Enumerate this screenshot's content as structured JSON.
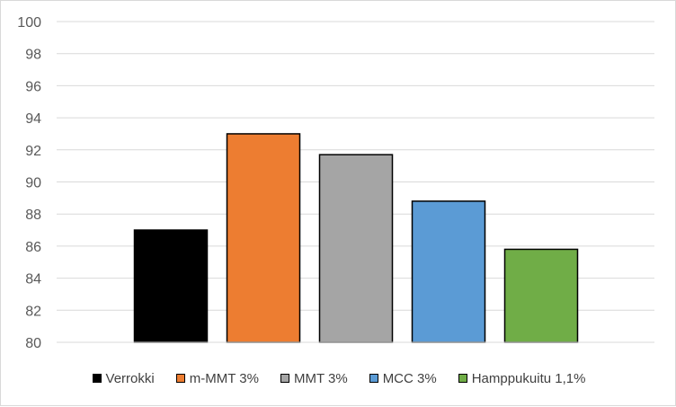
{
  "chart_data": {
    "type": "bar",
    "title": "",
    "xlabel": "",
    "ylabel": "",
    "ylim": [
      80,
      100
    ],
    "yticks": [
      "100",
      "98",
      "96",
      "94",
      "92",
      "90",
      "88",
      "86",
      "84",
      "82",
      "80"
    ],
    "grid": true,
    "legend_position": "bottom",
    "series": [
      {
        "name": "Verrokki",
        "value": 87.0,
        "color": "#000000"
      },
      {
        "name": "m-MMT 3%",
        "value": 93.0,
        "color": "#ed7d31"
      },
      {
        "name": "MMT 3%",
        "value": 91.7,
        "color": "#a5a5a5"
      },
      {
        "name": "MCC 3%",
        "value": 88.8,
        "color": "#5b9bd5"
      },
      {
        "name": "Hamppukuitu 1,1%",
        "value": 85.8,
        "color": "#70ad47"
      }
    ]
  }
}
